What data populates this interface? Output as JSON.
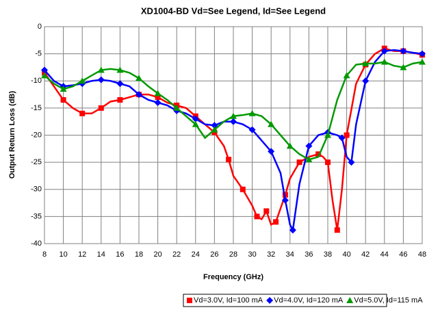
{
  "chart_data": {
    "type": "line",
    "title": "XD1004-BD Vd=See Legend, Id=See Legend",
    "x_label": "Frequency (GHz)",
    "y_label": "Output Return Loss (dB)",
    "xlim": [
      8,
      48
    ],
    "xticks": [
      8,
      10,
      12,
      14,
      16,
      18,
      20,
      22,
      24,
      26,
      28,
      30,
      32,
      34,
      36,
      38,
      40,
      42,
      44,
      46,
      48
    ],
    "ylim": [
      -40,
      0
    ],
    "yticks": [
      0,
      -5,
      -10,
      -15,
      -20,
      -25,
      -30,
      -35,
      -40
    ],
    "grid": true,
    "legend": "bottom",
    "series": [
      {
        "name": "Vd=3.0V, Id=100 mA",
        "color": "#ff0000",
        "marker": "square",
        "x": [
          8,
          9,
          10,
          11,
          12,
          13,
          14,
          15,
          16,
          17,
          18,
          19,
          20,
          21,
          22,
          23,
          24,
          25,
          26,
          27,
          27.5,
          28,
          29,
          30,
          30.5,
          31,
          31.5,
          32,
          32.5,
          33,
          33.5,
          34,
          35,
          36,
          37,
          37.5,
          38,
          38.5,
          39,
          39.5,
          40,
          41,
          42,
          43,
          44,
          45,
          46,
          47,
          48
        ],
        "values": [
          -8.5,
          -11,
          -13.5,
          -15,
          -16,
          -16,
          -15,
          -13.8,
          -13.5,
          -13,
          -12.5,
          -12.5,
          -13,
          -14,
          -14.5,
          -15,
          -16.5,
          -18,
          -19.5,
          -22,
          -24.5,
          -27.5,
          -30,
          -33,
          -35,
          -35.5,
          -34,
          -36.5,
          -36,
          -33.5,
          -31,
          -28,
          -25,
          -24,
          -23.5,
          -24,
          -25,
          -32,
          -37.5,
          -30,
          -20,
          -10.5,
          -7,
          -5,
          -4,
          -4.5,
          -4.5,
          -4.8,
          -5.2
        ]
      },
      {
        "name": "Vd=4.0V, Id=120 mA",
        "color": "#0000ff",
        "marker": "diamond",
        "x": [
          8,
          9,
          10,
          11,
          12,
          13,
          14,
          15,
          16,
          17,
          18,
          19,
          20,
          21,
          22,
          23,
          24,
          25,
          26,
          27,
          28,
          29,
          30,
          31,
          32,
          33,
          33.5,
          34,
          34.3,
          35,
          36,
          37,
          38,
          39,
          39.5,
          40,
          40.5,
          41,
          42,
          43,
          44,
          45,
          46,
          47,
          48
        ],
        "values": [
          -8,
          -10,
          -11,
          -10.8,
          -10.5,
          -10,
          -9.8,
          -10,
          -10.5,
          -11,
          -12.5,
          -13.5,
          -14,
          -14.5,
          -15.5,
          -16,
          -17,
          -18,
          -18.2,
          -17.5,
          -17.5,
          -18,
          -19,
          -21,
          -23,
          -27,
          -32,
          -36.5,
          -37.5,
          -29,
          -22,
          -20,
          -19.5,
          -20,
          -20.5,
          -24,
          -25,
          -18,
          -10,
          -6.5,
          -4.5,
          -4.3,
          -4.5,
          -4.8,
          -5
        ]
      },
      {
        "name": "Vd=5.0V, Id=115 mA",
        "color": "#009900",
        "marker": "triangle",
        "x": [
          8,
          9,
          10,
          11,
          12,
          13,
          14,
          15,
          16,
          17,
          18,
          19,
          20,
          21,
          22,
          23,
          24,
          25,
          26,
          27,
          28,
          29,
          30,
          31,
          32,
          33,
          34,
          35,
          36,
          37,
          38,
          39,
          40,
          41,
          42,
          43,
          44,
          45,
          46,
          47,
          48
        ],
        "values": [
          -9,
          -10.5,
          -11.5,
          -11,
          -10,
          -9,
          -8,
          -7.8,
          -8,
          -8.5,
          -9.5,
          -11,
          -12.3,
          -13.5,
          -15,
          -16.5,
          -18,
          -20.5,
          -19,
          -17.5,
          -16.5,
          -16.3,
          -16,
          -16.5,
          -18,
          -20,
          -22,
          -23.5,
          -24.5,
          -24,
          -20,
          -13.5,
          -9,
          -7,
          -6.8,
          -6.8,
          -6.5,
          -7.2,
          -7.5,
          -6.8,
          -6.5
        ]
      }
    ]
  }
}
